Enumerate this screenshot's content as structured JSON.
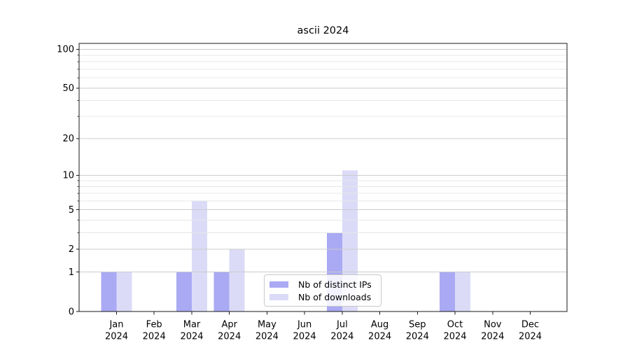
{
  "chart_data": {
    "type": "bar",
    "title": "ascii 2024",
    "categories": [
      "Jan 2024",
      "Feb 2024",
      "Mar 2024",
      "Apr 2024",
      "May 2024",
      "Jun 2024",
      "Jul 2024",
      "Aug 2024",
      "Sep 2024",
      "Oct 2024",
      "Nov 2024",
      "Dec 2024"
    ],
    "series": [
      {
        "name": "Nb of distinct IPs",
        "color": "#a9a9f4",
        "values": [
          1,
          0,
          1,
          1,
          0,
          0,
          3,
          0,
          0,
          1,
          0,
          0
        ]
      },
      {
        "name": "Nb of downloads",
        "color": "#dbdbf8",
        "values": [
          1,
          0,
          6,
          2,
          0,
          0,
          11,
          0,
          0,
          1,
          0,
          0
        ]
      }
    ],
    "y_axis": {
      "scale": "log1p",
      "ticks": [
        0,
        1,
        2,
        5,
        10,
        20,
        50,
        100
      ],
      "minor_gridlines": [
        3,
        4,
        6,
        7,
        8,
        9,
        30,
        40,
        60,
        70,
        80,
        90
      ],
      "ylim": [
        0,
        111
      ]
    },
    "x_axis": {
      "tick_label_lines": 2
    },
    "legend": {
      "position": "lower center"
    },
    "grid": true,
    "style": {
      "grid_major_color": "#cccccc",
      "grid_minor_color": "#e7e7e7",
      "spine_color": "#1a1a1a",
      "background": "#ffffff"
    }
  }
}
